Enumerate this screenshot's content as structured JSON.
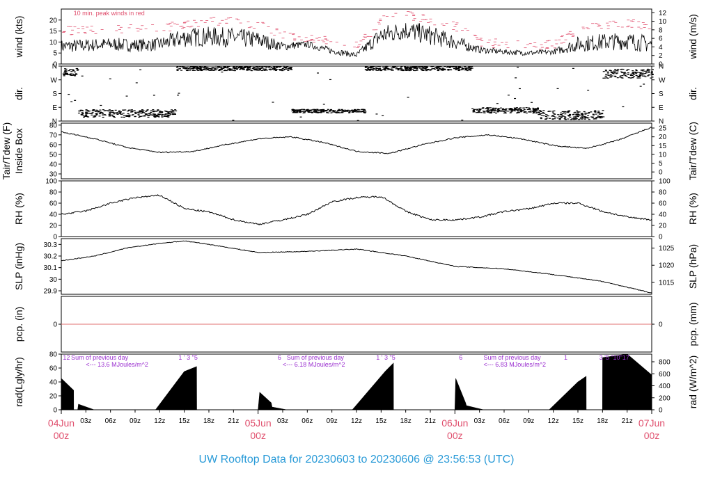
{
  "title": "UW Rooftop Data for 20230603  to  20230606 @ 23:56:53  (UTC)",
  "colors": {
    "line": "#000000",
    "peak": "#e0506e",
    "zero": "#e07070",
    "annotation": "#9b30d0",
    "day_label": "#e0506e",
    "title": "#2a9bd8"
  },
  "x_axis": {
    "days": [
      {
        "date": "04Jun",
        "hour": "00z",
        "t": 0
      },
      {
        "date": "05Jun",
        "hour": "00z",
        "t": 24
      },
      {
        "date": "06Jun",
        "hour": "00z",
        "t": 48
      },
      {
        "date": "07Jun",
        "hour": "00z",
        "t": 72
      }
    ],
    "hour_ticks": [
      {
        "t": 3,
        "label": "03z"
      },
      {
        "t": 6,
        "label": "06z"
      },
      {
        "t": 9,
        "label": "09z"
      },
      {
        "t": 12,
        "label": "12z"
      },
      {
        "t": 15,
        "label": "15z"
      },
      {
        "t": 18,
        "label": "18z"
      },
      {
        "t": 21,
        "label": "21z"
      },
      {
        "t": 27,
        "label": "03z"
      },
      {
        "t": 30,
        "label": "06z"
      },
      {
        "t": 33,
        "label": "09z"
      },
      {
        "t": 36,
        "label": "12z"
      },
      {
        "t": 39,
        "label": "15z"
      },
      {
        "t": 42,
        "label": "18z"
      },
      {
        "t": 45,
        "label": "21z"
      },
      {
        "t": 51,
        "label": "03z"
      },
      {
        "t": 54,
        "label": "06z"
      },
      {
        "t": 57,
        "label": "09z"
      },
      {
        "t": 60,
        "label": "12z"
      },
      {
        "t": 63,
        "label": "15z"
      },
      {
        "t": 66,
        "label": "18z"
      },
      {
        "t": 69,
        "label": "21z"
      }
    ]
  },
  "chart_data": [
    {
      "type": "line",
      "panel": "wind",
      "ylabel_left": "wind (kts)",
      "ylabel_right": "wind (m/s)",
      "ylim": [
        0,
        25
      ],
      "yticks_left": [
        0,
        5,
        10,
        15,
        20
      ],
      "ylim_right": [
        0,
        12.86
      ],
      "yticks_right": [
        0,
        2,
        4,
        6,
        8,
        10,
        12
      ],
      "annotation": "10 min. peak winds in red",
      "series": [
        {
          "name": "wind",
          "x": [
            0,
            3,
            6,
            9,
            12,
            15,
            18,
            21,
            24,
            27,
            30,
            33,
            36,
            39,
            42,
            45,
            48,
            51,
            54,
            57,
            60,
            63,
            66,
            69,
            72
          ],
          "values": [
            8,
            8.5,
            9,
            8.5,
            9,
            12,
            12.5,
            12,
            11,
            8,
            9,
            6,
            4,
            13,
            15.5,
            13,
            10,
            6.5,
            5.5,
            5,
            5.5,
            9,
            10,
            10.5,
            9
          ],
          "spread": [
            3,
            3,
            3,
            3,
            3,
            4.5,
            4.5,
            4.5,
            4,
            2,
            1.5,
            1.5,
            1.2,
            4.5,
            4.5,
            4.5,
            3.5,
            1.5,
            1.2,
            1.2,
            1.2,
            3.5,
            4,
            4,
            4
          ]
        },
        {
          "name": "10 min. peak winds",
          "x": [
            0,
            3,
            6,
            9,
            12,
            15,
            18,
            21,
            24,
            27,
            30,
            33,
            36,
            39,
            42,
            45,
            48,
            51,
            54,
            57,
            60,
            63,
            66,
            69,
            72
          ],
          "values": [
            15,
            15.5,
            16,
            16,
            16,
            18.5,
            19.5,
            19,
            18,
            13,
            12,
            10,
            8,
            20,
            22.5,
            20,
            17,
            10,
            9,
            8.5,
            9,
            16,
            18,
            18.5,
            17
          ]
        }
      ]
    },
    {
      "type": "scatter",
      "panel": "dir",
      "ylabel_left": "dir.",
      "ylabel_right": "dir.",
      "ylim": [
        0,
        360
      ],
      "yticks_left": [
        "N",
        "E",
        "S",
        "W",
        "N"
      ],
      "ytick_values": [
        0,
        90,
        180,
        270,
        360
      ],
      "segments": [
        {
          "x_start": 0,
          "x_end": 2,
          "center": 320,
          "spread": 25
        },
        {
          "x_start": 2,
          "x_end": 14,
          "center": 50,
          "spread": 25
        },
        {
          "x_start": 14,
          "x_end": 28,
          "center": 345,
          "spread": 15
        },
        {
          "x_start": 28,
          "x_end": 37,
          "center": 65,
          "spread": 12
        },
        {
          "x_start": 37,
          "x_end": 50,
          "center": 345,
          "spread": 15
        },
        {
          "x_start": 50,
          "x_end": 58,
          "center": 70,
          "spread": 18
        },
        {
          "x_start": 58,
          "x_end": 66,
          "center": 40,
          "spread": 30
        },
        {
          "x_start": 66,
          "x_end": 72,
          "center": 310,
          "spread": 30
        }
      ]
    },
    {
      "type": "line",
      "panel": "temp",
      "ylabel_left_lines": [
        "Tair/Tdew (F)",
        "Inside Box"
      ],
      "ylabel_right": "Tair/Tdew (C)",
      "ylim": [
        25,
        82
      ],
      "yticks_left": [
        30,
        40,
        50,
        60,
        70,
        80
      ],
      "yticks_right": [
        0,
        5,
        10,
        15,
        20,
        25
      ],
      "series": [
        {
          "name": "Tair",
          "x": [
            0,
            4,
            8,
            12,
            16,
            20,
            24,
            28,
            32,
            36,
            40,
            44,
            48,
            52,
            56,
            60,
            64,
            68,
            72
          ],
          "values": [
            73,
            66,
            57,
            52,
            53,
            60,
            66,
            68,
            62,
            53,
            51,
            60,
            67,
            70,
            66,
            59,
            56,
            65,
            78
          ]
        }
      ]
    },
    {
      "type": "line",
      "panel": "rh",
      "ylabel_left": "RH (%)",
      "ylabel_right": "RH (%)",
      "ylim": [
        0,
        100
      ],
      "yticks_left": [
        0,
        20,
        40,
        60,
        80,
        100
      ],
      "series": [
        {
          "name": "RH",
          "x": [
            0,
            3,
            6,
            9,
            12,
            15,
            18,
            21,
            24,
            27,
            30,
            33,
            36,
            39,
            42,
            45,
            48,
            51,
            54,
            57,
            60,
            63,
            66,
            69,
            72
          ],
          "values": [
            40,
            46,
            60,
            70,
            74,
            50,
            44,
            30,
            22,
            30,
            40,
            63,
            70,
            72,
            45,
            30,
            30,
            35,
            45,
            50,
            60,
            60,
            45,
            35,
            30
          ]
        }
      ]
    },
    {
      "type": "line",
      "panel": "slp",
      "ylabel_left": "SLP (inHg)",
      "ylabel_right": "SLP (hPa)",
      "ylim": [
        29.87,
        30.35
      ],
      "yticks_left": [
        29.9,
        30.0,
        30.1,
        30.2,
        30.3
      ],
      "yticks_right": [
        1015,
        1020,
        1025
      ],
      "series": [
        {
          "name": "SLP",
          "x": [
            0,
            4,
            8,
            12,
            15,
            18,
            24,
            30,
            36,
            42,
            48,
            54,
            60,
            66,
            72
          ],
          "values": [
            30.16,
            30.2,
            30.27,
            30.31,
            30.33,
            30.3,
            30.23,
            30.24,
            30.26,
            30.2,
            30.11,
            30.09,
            30.04,
            29.98,
            29.88
          ]
        }
      ]
    },
    {
      "type": "line",
      "panel": "pcp",
      "ylabel_left": "pcp. (in)",
      "ylabel_right": "pcp. (mm)",
      "ylim": [
        -1,
        1
      ],
      "yticks_left": [
        0
      ],
      "yticks_right": [
        0
      ],
      "series": [
        {
          "name": "pcp",
          "x": [
            0,
            72
          ],
          "values": [
            0,
            0
          ]
        }
      ]
    },
    {
      "type": "area",
      "panel": "rad",
      "ylabel_left": "rad(Lgly/hr)",
      "ylabel_right": "rad (W/m^2)",
      "ylim": [
        0,
        80
      ],
      "yticks_left": [
        0,
        20,
        40,
        60,
        80
      ],
      "yticks_right": [
        0,
        200,
        400,
        600,
        800
      ],
      "series": [
        {
          "name": "rad",
          "x": [
            0,
            1.5,
            1.51,
            2,
            2.1,
            4,
            4.1,
            11.5,
            15,
            16.5,
            16.51,
            24,
            24.2,
            25.6,
            25.7,
            27.5,
            27.6,
            35.5,
            39.5,
            40.5,
            40.51,
            48,
            48.1,
            49.3,
            49.4,
            51.5,
            51.6,
            59.5,
            63,
            64,
            64.01,
            66,
            66.01,
            69,
            72
          ],
          "values": [
            45,
            28,
            0,
            0,
            8,
            0,
            0,
            0,
            55,
            62,
            0,
            0,
            25,
            10,
            4,
            0,
            0,
            0,
            55,
            67,
            0,
            0,
            45,
            10,
            6,
            0,
            0,
            0,
            40,
            48,
            0,
            0,
            75,
            80,
            50
          ]
        }
      ],
      "annotations": [
        {
          "t": 0.2,
          "level": 0,
          "text": "12"
        },
        {
          "t": 14.3,
          "level": 0,
          "text": "1 ' 3 \"5"
        },
        {
          "t": 26.4,
          "level": 0,
          "text": "6"
        },
        {
          "t": 38.4,
          "level": 0,
          "text": "1 ' 3 \"5"
        },
        {
          "t": 48.5,
          "level": 0,
          "text": "6"
        },
        {
          "t": 61.3,
          "level": 0,
          "text": "1"
        },
        {
          "t": 65.6,
          "level": 0,
          "text": "3 '5 \"10\"17"
        },
        {
          "t": 1.2,
          "level": 0,
          "text": "Sum of previous day"
        },
        {
          "t": 3.0,
          "level": 1,
          "text": "<--- 13.6 MJoules/m^2"
        },
        {
          "t": 27.5,
          "level": 0,
          "text": "Sum of previous day"
        },
        {
          "t": 27.0,
          "level": 1,
          "text": "<--- 6.18 MJoules/m^2"
        },
        {
          "t": 51.5,
          "level": 0,
          "text": "Sum of previous day"
        },
        {
          "t": 51.5,
          "level": 1,
          "text": "<--- 6.83 MJoules/m^2"
        }
      ]
    }
  ]
}
